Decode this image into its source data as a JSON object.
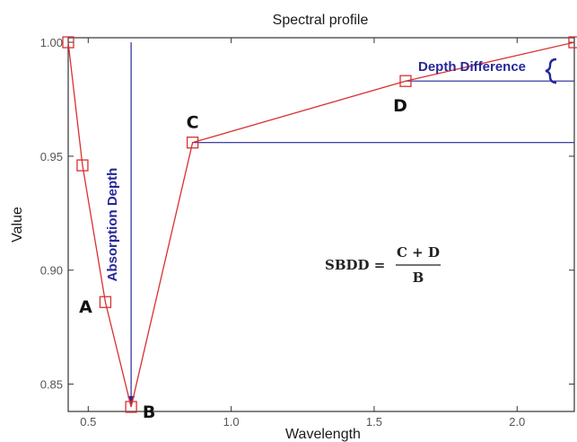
{
  "chart_data": {
    "type": "line",
    "title": "Spectral profile",
    "xlabel": "Wavelength",
    "ylabel": "Value",
    "xlim": [
      0.43,
      2.2
    ],
    "ylim": [
      0.838,
      1.002
    ],
    "x_ticks": [
      0.5,
      1.0,
      1.5,
      2.0
    ],
    "x_tick_labels": [
      "0.5",
      "1.0",
      "1.5",
      "2.0"
    ],
    "y_ticks": [
      0.85,
      0.9,
      0.95,
      1.0
    ],
    "y_tick_labels": [
      "0.85",
      "0.90",
      "0.95",
      "1.00"
    ],
    "grid": false,
    "series": [
      {
        "color": "#d93030",
        "x": [
          0.43,
          0.48,
          0.56,
          0.65,
          0.865,
          1.61,
          2.2
        ],
        "y": [
          1.0,
          0.946,
          0.886,
          0.84,
          0.956,
          0.983,
          1.0
        ]
      }
    ],
    "point_labels": [
      {
        "label": "A",
        "x": 0.56,
        "y": 0.886
      },
      {
        "label": "B",
        "x": 0.65,
        "y": 0.84
      },
      {
        "label": "C",
        "x": 0.865,
        "y": 0.956
      },
      {
        "label": "D",
        "x": 1.61,
        "y": 0.983
      }
    ],
    "annotations": {
      "absorption_depth": "Absorption Depth",
      "depth_difference": "Depth Difference",
      "formula_lhs": "SBDD =",
      "formula_numerator": "C + D",
      "formula_denominator": "B"
    },
    "annotation_color": "#27279a"
  }
}
